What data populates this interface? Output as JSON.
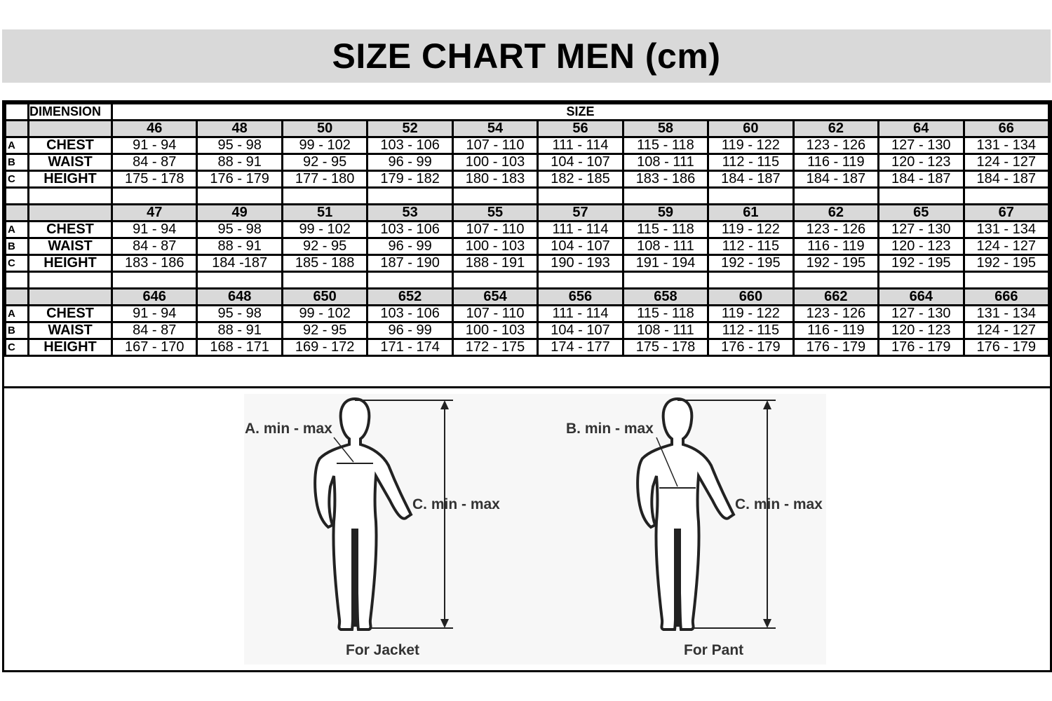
{
  "title": "SIZE CHART MEN (cm)",
  "header": {
    "dimension": "DIMENSION",
    "size": "SIZE"
  },
  "row_labels": {
    "chest": "CHEST",
    "waist": "WAIST",
    "height": "HEIGHT",
    "a": "A",
    "b": "B",
    "c": "C"
  },
  "blocks": [
    {
      "sizes": [
        "46",
        "48",
        "50",
        "52",
        "54",
        "56",
        "58",
        "60",
        "62",
        "64",
        "66"
      ],
      "chest": [
        "91 - 94",
        "95 - 98",
        "99 - 102",
        "103 - 106",
        "107 - 110",
        "111 - 114",
        "115 - 118",
        "119 - 122",
        "123 - 126",
        "127 - 130",
        "131 - 134"
      ],
      "waist": [
        "84 - 87",
        "88 - 91",
        "92 - 95",
        "96 - 99",
        "100 - 103",
        "104 - 107",
        "108 - 111",
        "112 - 115",
        "116 - 119",
        "120 - 123",
        "124 - 127"
      ],
      "height": [
        "175 - 178",
        "176 - 179",
        "177 - 180",
        "179 - 182",
        "180 - 183",
        "182 - 185",
        "183 - 186",
        "184 - 187",
        "184 - 187",
        "184 - 187",
        "184 - 187"
      ]
    },
    {
      "sizes": [
        "47",
        "49",
        "51",
        "53",
        "55",
        "57",
        "59",
        "61",
        "62",
        "65",
        "67"
      ],
      "chest": [
        "91 - 94",
        "95 - 98",
        "99 - 102",
        "103 - 106",
        "107 - 110",
        "111 - 114",
        "115 - 118",
        "119 - 122",
        "123 - 126",
        "127 - 130",
        "131 - 134"
      ],
      "waist": [
        "84 - 87",
        "88 - 91",
        "92 - 95",
        "96 - 99",
        "100 - 103",
        "104 - 107",
        "108 - 111",
        "112 - 115",
        "116 - 119",
        "120 - 123",
        "124 - 127"
      ],
      "height": [
        "183 - 186",
        "184 -187",
        "185 - 188",
        "187 - 190",
        "188 - 191",
        "190 - 193",
        "191 - 194",
        "192 - 195",
        "192 - 195",
        "192 - 195",
        "192 - 195"
      ]
    },
    {
      "sizes": [
        "646",
        "648",
        "650",
        "652",
        "654",
        "656",
        "658",
        "660",
        "662",
        "664",
        "666"
      ],
      "chest": [
        "91 - 94",
        "95 - 98",
        "99 - 102",
        "103 - 106",
        "107 - 110",
        "111 - 114",
        "115 - 118",
        "119 - 122",
        "123 - 126",
        "127 - 130",
        "131 - 134"
      ],
      "waist": [
        "84 - 87",
        "88 - 91",
        "92 - 95",
        "96 - 99",
        "100 - 103",
        "104 - 107",
        "108 - 111",
        "112 - 115",
        "116 - 119",
        "120 - 123",
        "124 - 127"
      ],
      "height": [
        "167 - 170",
        "168 - 171",
        "169 - 172",
        "171 - 174",
        "172 - 175",
        "174 - 177",
        "175 - 178",
        "176 - 179",
        "176 - 179",
        "176 - 179",
        "176 - 179"
      ]
    }
  ],
  "figures": {
    "jacket": {
      "measure_a": "A. min - max",
      "measure_c": "C. min - max",
      "caption": "For Jacket"
    },
    "pant": {
      "measure_b": "B. min - max",
      "measure_c": "C. min - max",
      "caption": "For Pant"
    }
  }
}
